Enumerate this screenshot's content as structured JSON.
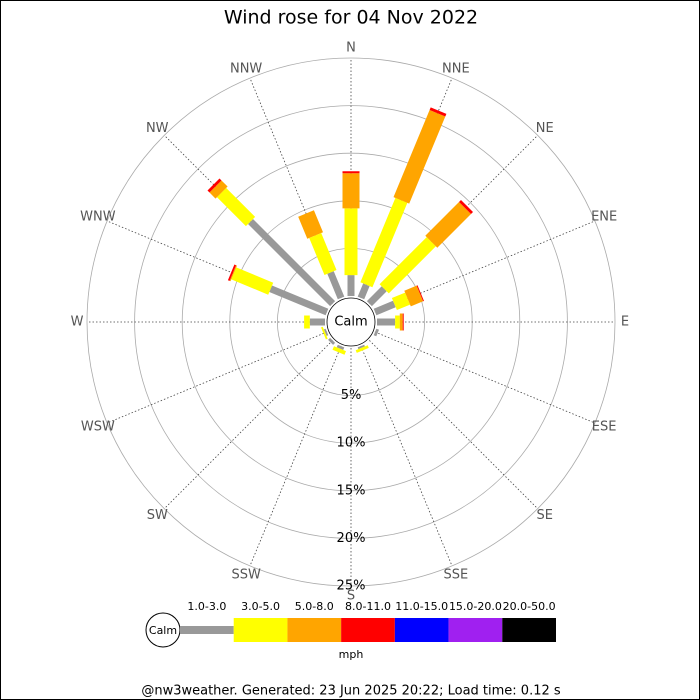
{
  "chart_data": {
    "type": "wind_rose",
    "title": "Wind rose for 04 Nov 2022",
    "categories": [
      "N",
      "NNE",
      "NE",
      "ENE",
      "E",
      "ESE",
      "SE",
      "SSE",
      "S",
      "SSW",
      "SW",
      "WSW",
      "W",
      "WNW",
      "NW",
      "NNW"
    ],
    "calm_label": "Calm",
    "rlim": [
      0,
      25
    ],
    "rticks": [
      {
        "value": 5,
        "label": "5%"
      },
      {
        "value": 10,
        "label": "10%"
      },
      {
        "value": 15,
        "label": "15%"
      },
      {
        "value": 20,
        "label": "20%"
      },
      {
        "value": 25,
        "label": "25%"
      }
    ],
    "series": [
      {
        "name": "1.0-3.0",
        "color": "#999999",
        "values": [
          2.2,
          1.5,
          2.2,
          2.2,
          1.9,
          0.3,
          0,
          0.2,
          0,
          0.3,
          0.3,
          0.2,
          1.6,
          6.4,
          12.2,
          2.9
        ]
      },
      {
        "name": "3.0-5.0",
        "color": "#ffff00",
        "values": [
          7.0,
          9.6,
          7.0,
          1.5,
          0.5,
          0,
          0,
          0.3,
          0,
          0.4,
          0,
          0.2,
          0.6,
          4.2,
          4.3,
          4.2
        ]
      },
      {
        "name": "5.0-8.0",
        "color": "#ffa500",
        "values": [
          3.7,
          9.9,
          5.0,
          1.4,
          0.3,
          0,
          0,
          0,
          0,
          0,
          0,
          0,
          0,
          0.1,
          0.9,
          2.5
        ]
      },
      {
        "name": "8.0-11.0",
        "color": "#ff0000",
        "values": [
          0.2,
          0.3,
          0.3,
          0.1,
          0.1,
          0,
          0,
          0,
          0,
          0,
          0,
          0,
          0,
          0.2,
          0.3,
          0
        ]
      },
      {
        "name": "11.0-15.0",
        "color": "#0000ff",
        "values": [
          0,
          0,
          0,
          0,
          0,
          0,
          0,
          0,
          0,
          0,
          0,
          0,
          0,
          0,
          0,
          0
        ]
      },
      {
        "name": "15.0-20.0",
        "color": "#a020f0",
        "values": [
          0,
          0,
          0,
          0,
          0,
          0,
          0,
          0,
          0,
          0,
          0,
          0,
          0,
          0,
          0,
          0
        ]
      },
      {
        "name": "20.0-50.0",
        "color": "#000000",
        "values": [
          0,
          0,
          0,
          0,
          0,
          0,
          0,
          0,
          0,
          0,
          0,
          0,
          0,
          0,
          0,
          0
        ]
      }
    ],
    "unit_label": "mph",
    "footer": "@nw3weather. Generated: 23 Jun 2025 20:22; Load time: 0.12 s"
  }
}
